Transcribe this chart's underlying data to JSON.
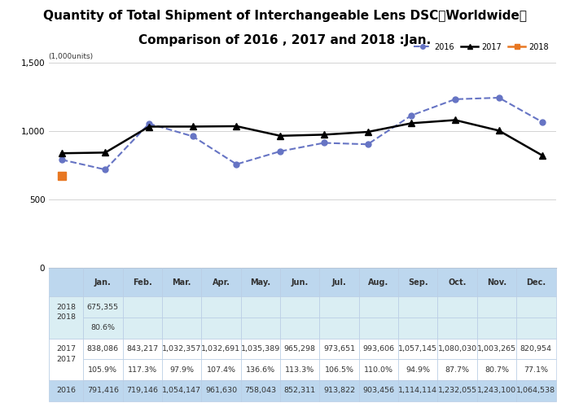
{
  "title_line1": "Quantity of Total Shipment of Interchangeable Lens DSC［Worldwide］",
  "title_line2": "Comparison of 2016 , 2017 and 2018 :Jan.",
  "unit_label": "(1,000units)",
  "months": [
    "Jan.",
    "Feb.",
    "Mar.",
    "Apr.",
    "May.",
    "Jun.",
    "Jul.",
    "Aug.",
    "Sep.",
    "Oct.",
    "Nov.",
    "Dec."
  ],
  "data_2016": [
    791416,
    719146,
    1054147,
    961630,
    758043,
    852311,
    913822,
    903456,
    1114114,
    1232055,
    1243100,
    1064538
  ],
  "data_2017": [
    838086,
    843217,
    1032357,
    1032691,
    1035389,
    965298,
    973651,
    993606,
    1057145,
    1080030,
    1003265,
    820954
  ],
  "data_2018_jan": 675355,
  "pct_2018_jan": "80.6%",
  "pct_2017": [
    "105.9%",
    "117.3%",
    "97.9%",
    "107.4%",
    "136.6%",
    "113.3%",
    "106.5%",
    "110.0%",
    "94.9%",
    "87.7%",
    "80.7%",
    "77.1%"
  ],
  "color_2016": "#6674C4",
  "color_2017": "#000000",
  "color_2018": "#E87722",
  "ylim_min": 0,
  "ylim_max": 1500,
  "ytick_vals": [
    0,
    500,
    1000,
    1500
  ],
  "ytick_labels": [
    "0",
    "500",
    "1,000",
    "1,500"
  ],
  "table_header_bg": "#BDD7EE",
  "table_2018_bg": "#DAEEF3",
  "table_2017_bg": "#FFFFFF",
  "table_2016_bg": "#BDD7EE",
  "table_border_color": "#B8CCE4"
}
